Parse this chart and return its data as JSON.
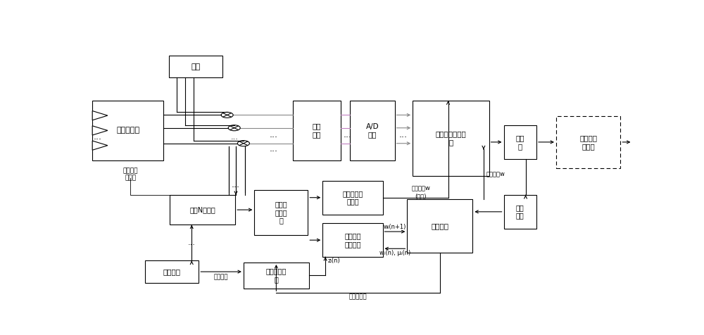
{
  "bg": "#ffffff",
  "blocks": {
    "bz": [
      0.148,
      0.855,
      0.098,
      0.085
    ],
    "ant": [
      0.008,
      0.535,
      0.13,
      0.23
    ],
    "bp1": [
      0.375,
      0.535,
      0.088,
      0.23
    ],
    "ad": [
      0.48,
      0.535,
      0.082,
      0.23
    ],
    "dbf": [
      0.595,
      0.475,
      0.14,
      0.29
    ],
    "flr": [
      0.762,
      0.54,
      0.06,
      0.13
    ],
    "dec": [
      0.858,
      0.505,
      0.118,
      0.2
    ],
    "sw": [
      0.15,
      0.285,
      0.12,
      0.115
    ],
    "pat": [
      0.305,
      0.245,
      0.098,
      0.175
    ],
    "opn": [
      0.43,
      0.325,
      0.11,
      0.13
    ],
    "cls": [
      0.43,
      0.16,
      0.11,
      0.13
    ],
    "ctl": [
      0.585,
      0.175,
      0.12,
      0.21
    ],
    "bpr": [
      0.762,
      0.27,
      0.06,
      0.13
    ],
    "bpb": [
      0.105,
      0.06,
      0.098,
      0.085
    ],
    "cor": [
      0.285,
      0.038,
      0.12,
      0.1
    ]
  },
  "labels": {
    "bz": "本振",
    "ant": "相控阵天线",
    "bp1": "带通\n滤波",
    "ad": "A/D\n变换",
    "dbf": "数字波束形成网\n络",
    "flr": "分路\n器",
    "dec": "解扩、解\n调单元",
    "sw": "单刀N値开关",
    "pat": "方向图\n存储单\n元",
    "opn": "开环保形运\n算单元",
    "cls": "闭环迭代\n运算单元",
    "ctl": "控制单元",
    "bpr": "带通\n滤波",
    "bpb": "带通滤波",
    "cor": "相关运算单\n元"
  },
  "purple": "#c080c0",
  "gray": "#888888",
  "black": "#000000",
  "lw": 0.8
}
